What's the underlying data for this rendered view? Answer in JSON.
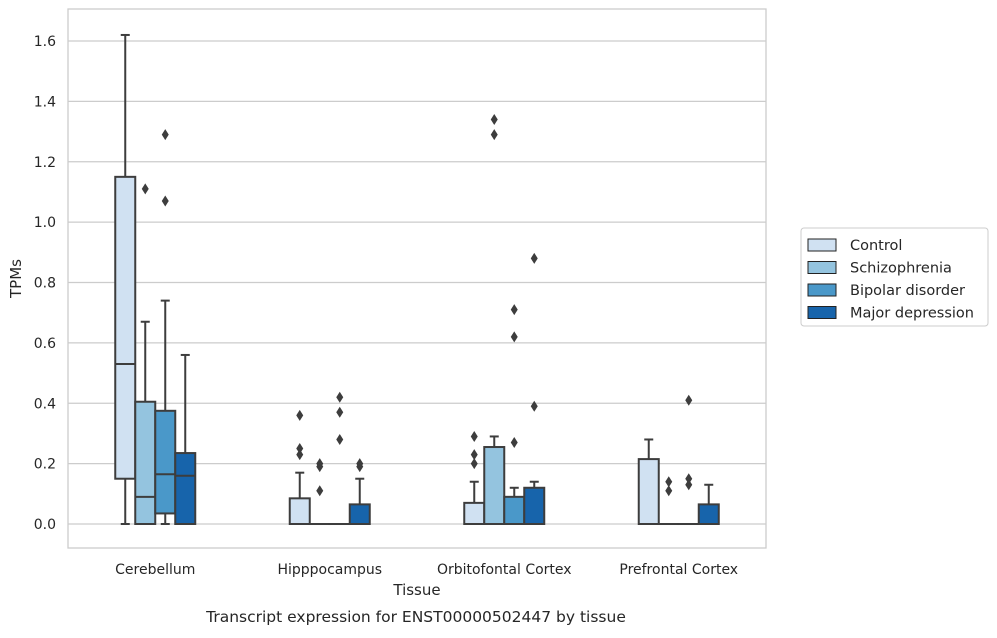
{
  "caption": "Transcript expression for ENST00000502447 by tissue",
  "chart_data": {
    "type": "box",
    "xlabel": "Tissue",
    "ylabel": "TPMs",
    "ylim": [
      -0.08,
      1.7
    ],
    "yticks": [
      0.0,
      0.2,
      0.4,
      0.6,
      0.8,
      1.0,
      1.2,
      1.4,
      1.6
    ],
    "grid": "horizontal",
    "legend_position": "right",
    "categories": [
      "Cerebellum",
      "Hipppocampus",
      "Orbitofontal Cortex",
      "Prefrontal Cortex"
    ],
    "series": [
      {
        "name": "Control",
        "color": "#d0e1f2",
        "boxes": [
          {
            "whislo": 0.0,
            "q1": 0.15,
            "med": 0.53,
            "q3": 1.15,
            "whishi": 1.62,
            "fliers": []
          },
          {
            "whislo": 0.0,
            "q1": 0.0,
            "med": 0.0,
            "q3": 0.085,
            "whishi": 0.17,
            "fliers": [
              0.23,
              0.25,
              0.36
            ]
          },
          {
            "whislo": 0.0,
            "q1": 0.0,
            "med": 0.0,
            "q3": 0.07,
            "whishi": 0.14,
            "fliers": [
              0.2,
              0.23,
              0.29
            ]
          },
          {
            "whislo": 0.0,
            "q1": 0.0,
            "med": 0.0,
            "q3": 0.215,
            "whishi": 0.28,
            "fliers": []
          }
        ]
      },
      {
        "name": "Schizophrenia",
        "color": "#94c4df",
        "boxes": [
          {
            "whislo": 0.0,
            "q1": 0.0,
            "med": 0.09,
            "q3": 0.405,
            "whishi": 0.67,
            "fliers": [
              1.11
            ]
          },
          {
            "whislo": 0.0,
            "q1": 0.0,
            "med": 0.0,
            "q3": 0.0,
            "whishi": 0.0,
            "fliers": [
              0.11,
              0.19,
              0.2
            ]
          },
          {
            "whislo": 0.0,
            "q1": 0.0,
            "med": 0.0,
            "q3": 0.255,
            "whishi": 0.29,
            "fliers": [
              1.29,
              1.34
            ]
          },
          {
            "whislo": 0.0,
            "q1": 0.0,
            "med": 0.0,
            "q3": 0.0,
            "whishi": 0.0,
            "fliers": [
              0.11,
              0.14
            ]
          }
        ]
      },
      {
        "name": "Bipolar disorder",
        "color": "#4a98c9",
        "boxes": [
          {
            "whislo": 0.0,
            "q1": 0.035,
            "med": 0.165,
            "q3": 0.375,
            "whishi": 0.74,
            "fliers": [
              1.07,
              1.29
            ]
          },
          {
            "whislo": 0.0,
            "q1": 0.0,
            "med": 0.0,
            "q3": 0.0,
            "whishi": 0.0,
            "fliers": [
              0.28,
              0.37,
              0.42
            ]
          },
          {
            "whislo": 0.0,
            "q1": 0.0,
            "med": 0.0,
            "q3": 0.09,
            "whishi": 0.12,
            "fliers": [
              0.27,
              0.62,
              0.71
            ]
          },
          {
            "whislo": 0.0,
            "q1": 0.0,
            "med": 0.0,
            "q3": 0.0,
            "whishi": 0.0,
            "fliers": [
              0.13,
              0.15,
              0.41
            ]
          }
        ]
      },
      {
        "name": "Major depression",
        "color": "#1764ab",
        "boxes": [
          {
            "whislo": 0.0,
            "q1": 0.0,
            "med": 0.16,
            "q3": 0.235,
            "whishi": 0.56,
            "fliers": []
          },
          {
            "whislo": 0.0,
            "q1": 0.0,
            "med": 0.0,
            "q3": 0.065,
            "whishi": 0.15,
            "fliers": [
              0.19,
              0.2
            ]
          },
          {
            "whislo": 0.0,
            "q1": 0.0,
            "med": 0.0,
            "q3": 0.12,
            "whishi": 0.14,
            "fliers": [
              0.39,
              0.88
            ]
          },
          {
            "whislo": 0.0,
            "q1": 0.0,
            "med": 0.0,
            "q3": 0.065,
            "whishi": 0.13,
            "fliers": []
          }
        ]
      }
    ]
  }
}
